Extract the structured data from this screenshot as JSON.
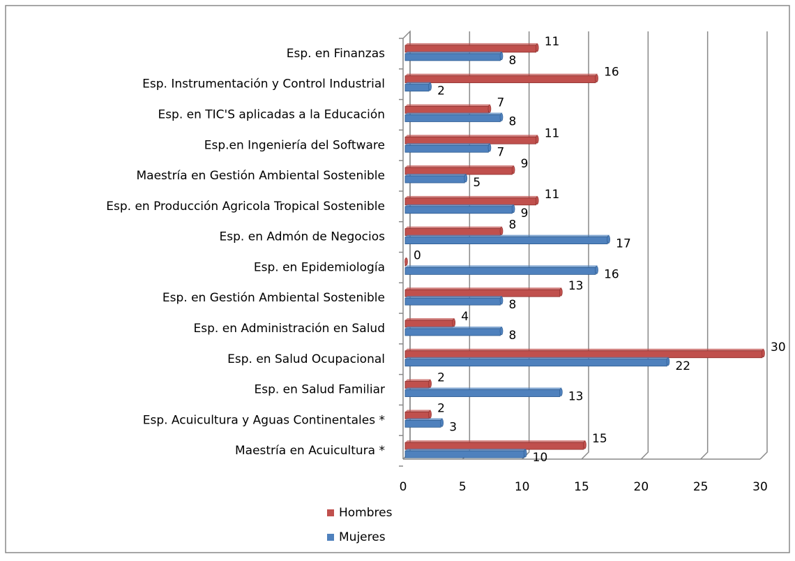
{
  "chart_data": {
    "type": "bar",
    "orientation": "horizontal",
    "categories": [
      "Esp. en Finanzas",
      "Esp. Instrumentación y  Control Industrial",
      "Esp. en TIC'S aplicadas a la Educación",
      "Esp.en Ingeniería del Software",
      "Maestría en Gestión Ambiental Sostenible",
      "Esp. en Producción Agricola Tropical Sostenible",
      "Esp. en Admón de Negocios",
      "Esp. en Epidemiología",
      "Esp. en Gestión Ambiental Sostenible",
      "Esp. en Administración en Salud",
      "Esp. en Salud Ocupacional",
      "Esp. en Salud Familiar",
      "Esp. Acuicultura y Aguas Continentales *",
      "Maestría en Acuicultura *"
    ],
    "series": [
      {
        "name": "Hombres",
        "color": "#c0504d",
        "values": [
          11,
          16,
          7,
          11,
          9,
          11,
          8,
          0,
          13,
          4,
          30,
          2,
          2,
          15
        ]
      },
      {
        "name": "Mujeres",
        "color": "#4f81bd",
        "values": [
          8,
          2,
          8,
          7,
          5,
          9,
          17,
          16,
          8,
          8,
          22,
          13,
          3,
          10
        ]
      }
    ],
    "xlim": [
      0,
      30
    ],
    "xticks": [
      0,
      5,
      10,
      15,
      20,
      25,
      30
    ],
    "grid": true,
    "legend": "bottom-left"
  }
}
